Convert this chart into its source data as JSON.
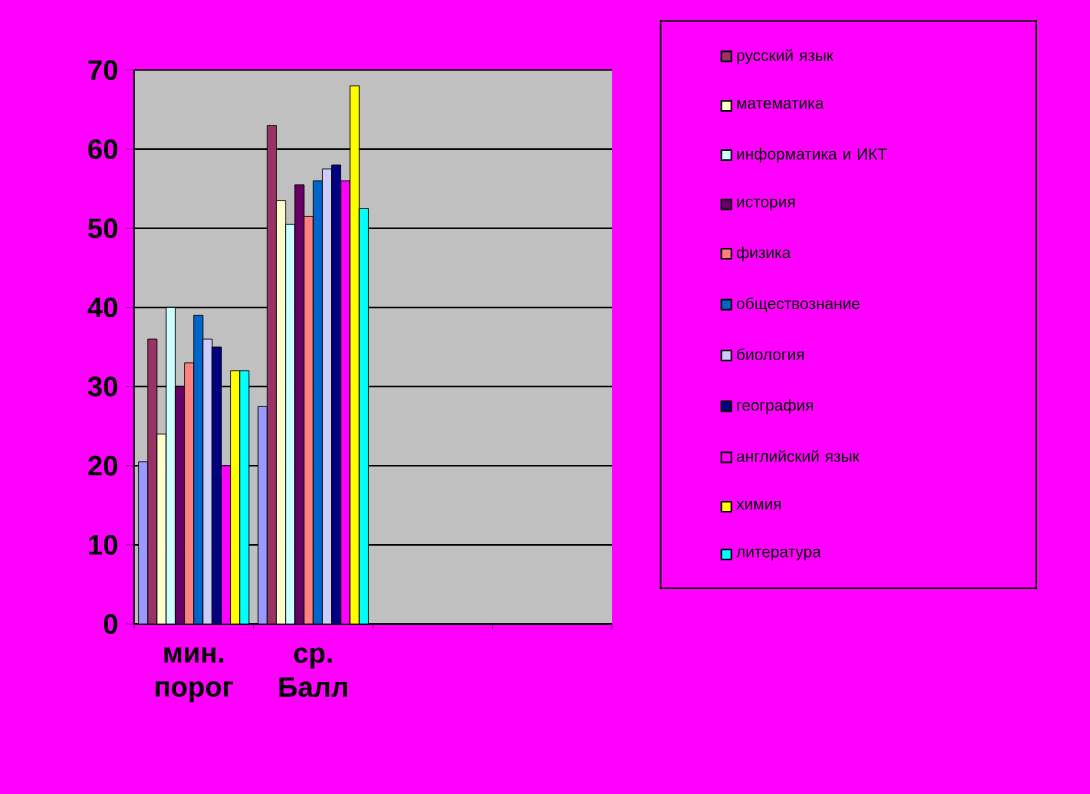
{
  "chart_data": {
    "type": "bar",
    "categories": [
      "мин. порог",
      "ср. Балл",
      null,
      null
    ],
    "series": [
      {
        "color": "#9999ff",
        "values": [
          20.5,
          27.5,
          null,
          null
        ]
      },
      {
        "name": "русский язык",
        "color": "#993366",
        "values": [
          36,
          63,
          null,
          null
        ]
      },
      {
        "name": "математика",
        "color": "#ffffcc",
        "values": [
          24,
          53.5,
          null,
          null
        ]
      },
      {
        "name": "информатика и ИКТ",
        "color": "#ccffff",
        "values": [
          40,
          50.5,
          null,
          null
        ]
      },
      {
        "name": "история",
        "color": "#660066",
        "values": [
          30,
          55.5,
          null,
          null
        ]
      },
      {
        "name": "физика",
        "color": "#ff8080",
        "values": [
          33,
          51.5,
          null,
          null
        ]
      },
      {
        "name": "обществознание",
        "color": "#0066cc",
        "values": [
          39,
          56,
          null,
          null
        ]
      },
      {
        "name": "биология",
        "color": "#ccccff",
        "values": [
          36,
          57.5,
          null,
          null
        ]
      },
      {
        "name": "география",
        "color": "#000080",
        "values": [
          35,
          58,
          null,
          null
        ]
      },
      {
        "name": "английский язык",
        "color": "#ff00ff",
        "values": [
          20,
          56,
          null,
          null
        ]
      },
      {
        "name": "химия",
        "color": "#ffff00",
        "values": [
          32,
          68,
          null,
          null
        ]
      },
      {
        "name": "литература",
        "color": "#00ffff",
        "values": [
          32,
          52.5,
          null,
          null
        ]
      }
    ],
    "ylim": [
      0,
      70
    ],
    "yticks": [
      0,
      10,
      20,
      30,
      40,
      50,
      60,
      70
    ],
    "grid": "y",
    "legend": "right"
  }
}
